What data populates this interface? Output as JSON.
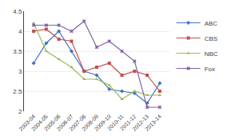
{
  "chart_data": {
    "type": "line",
    "categories": [
      "2003-04",
      "2004-05",
      "2005-06",
      "2006-07",
      "2007-08",
      "2008-09",
      "2009-10",
      "2010-11",
      "2011-12",
      "2012-13",
      "2013-14"
    ],
    "series": [
      {
        "name": "ABC",
        "color": "#4472c4",
        "marker": "diamond",
        "values": [
          3.2,
          3.7,
          4.0,
          3.5,
          3.0,
          2.9,
          2.55,
          2.5,
          2.45,
          2.2,
          2.7
        ]
      },
      {
        "name": "CBS",
        "color": "#c0504d",
        "marker": "square",
        "values": [
          4.0,
          4.05,
          3.8,
          3.75,
          3.0,
          3.1,
          3.2,
          2.9,
          3.0,
          2.9,
          2.5
        ]
      },
      {
        "name": "NBC",
        "color": "#9bbb59",
        "marker": "triangle-up",
        "values": [
          4.2,
          3.5,
          3.3,
          3.1,
          2.8,
          2.8,
          2.65,
          2.3,
          2.5,
          2.4,
          2.4
        ]
      },
      {
        "name": "Fox",
        "color": "#8064a2",
        "marker": "x",
        "values": [
          4.15,
          4.15,
          4.15,
          4.0,
          4.25,
          3.6,
          3.75,
          3.5,
          3.25,
          2.1,
          2.1
        ]
      }
    ],
    "ylim": [
      2,
      4.5
    ],
    "yticks": [
      2,
      2.5,
      3,
      3.5,
      4,
      4.5
    ],
    "grid": true,
    "legend": "right"
  }
}
